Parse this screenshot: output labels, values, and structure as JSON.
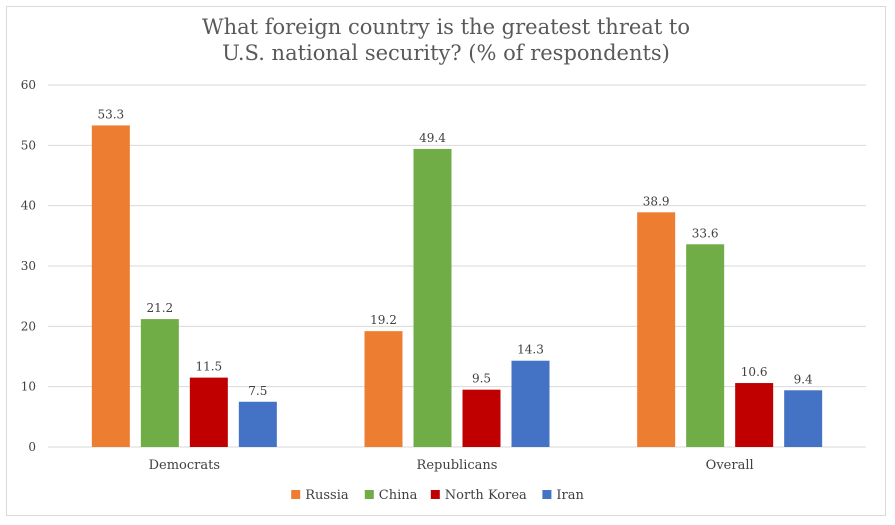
{
  "chart_data": {
    "type": "bar",
    "title": "What foreign country is the greatest threat to U.S. national security? (% of respondents)",
    "title_lines": [
      "What foreign country is the greatest threat to",
      "U.S. national security? (% of respondents)"
    ],
    "categories": [
      "Democrats",
      "Republicans",
      "Overall"
    ],
    "series": [
      {
        "name": "Russia",
        "color": "#ED7D31",
        "values": [
          53.3,
          19.2,
          38.9
        ],
        "labels": [
          "53.3",
          "19.2",
          "38.9"
        ]
      },
      {
        "name": "China",
        "color": "#70AD47",
        "values": [
          21.2,
          49.4,
          33.6
        ],
        "labels": [
          "21.2",
          "49.4",
          "33.6"
        ]
      },
      {
        "name": "North Korea",
        "color": "#C00000",
        "values": [
          11.5,
          9.5,
          10.6
        ],
        "labels": [
          "11.5",
          "9.5",
          "10.6"
        ]
      },
      {
        "name": "Iran",
        "color": "#4472C4",
        "values": [
          7.5,
          14.3,
          9.4
        ],
        "labels": [
          "7.5",
          "14.3",
          "9.4"
        ]
      }
    ],
    "ylim": [
      0,
      60
    ],
    "yticks": [
      0,
      10,
      20,
      30,
      40,
      50,
      60
    ],
    "grid": true,
    "legend_position": "bottom"
  }
}
